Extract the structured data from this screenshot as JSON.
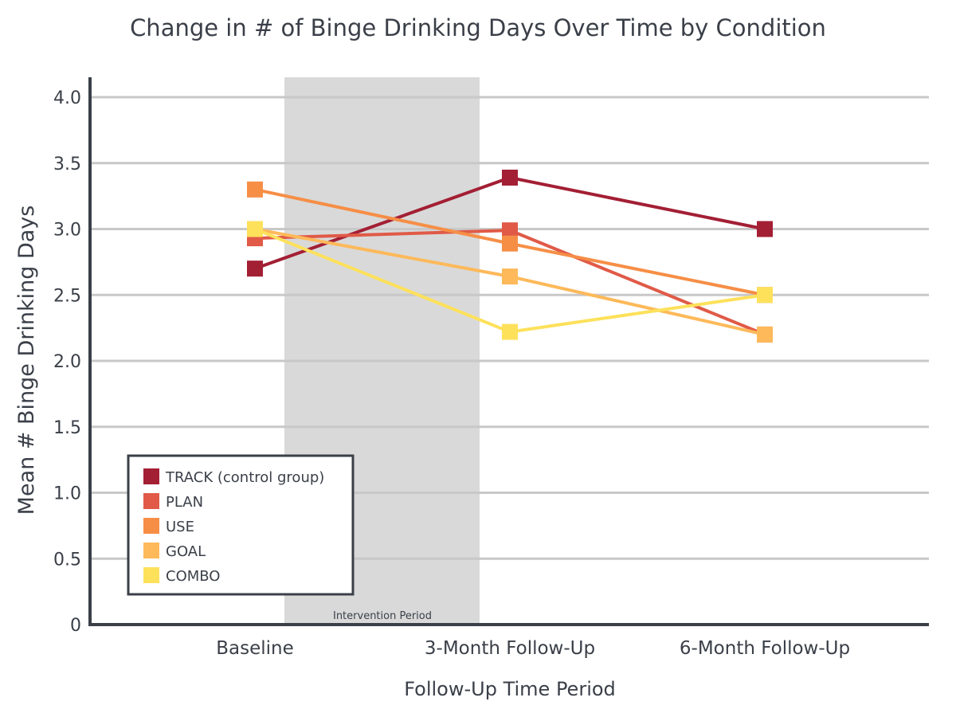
{
  "chart_data": {
    "type": "line",
    "title": "Change in # of Binge Drinking Days Over Time by Condition",
    "xlabel": "Follow-Up Time Period",
    "ylabel": "Mean # Binge Drinking Days",
    "categories": [
      "Baseline",
      "3-Month Follow-Up",
      "6-Month Follow-Up"
    ],
    "ylim": [
      0,
      4.0
    ],
    "yticks": [
      "0",
      "0.5",
      "1.0",
      "1.5",
      "2.0",
      "2.5",
      "3.0",
      "3.5",
      "4.0"
    ],
    "grid": true,
    "legend_position": "bottom-left",
    "shaded_band": {
      "label": "Intervention Period",
      "from_category": "Baseline",
      "to_category": "3-Month Follow-Up",
      "color": "#d9d9d9"
    },
    "series": [
      {
        "name": "TRACK (control group)",
        "color": "#a31f34",
        "values": [
          2.7,
          3.39,
          3.0
        ]
      },
      {
        "name": "PLAN",
        "color": "#e05a47",
        "values": [
          2.93,
          2.99,
          2.2
        ]
      },
      {
        "name": "USE",
        "color": "#f68e46",
        "values": [
          3.3,
          2.89,
          2.5
        ]
      },
      {
        "name": "GOAL",
        "color": "#fdb95a",
        "values": [
          3.0,
          2.64,
          2.2
        ]
      },
      {
        "name": "COMBO",
        "color": "#fde15b",
        "values": [
          3.0,
          2.22,
          2.5
        ]
      }
    ]
  },
  "colors": {
    "axis": "#3a3f48",
    "grid": "#c8c8c8",
    "text": "#3a3f48"
  }
}
